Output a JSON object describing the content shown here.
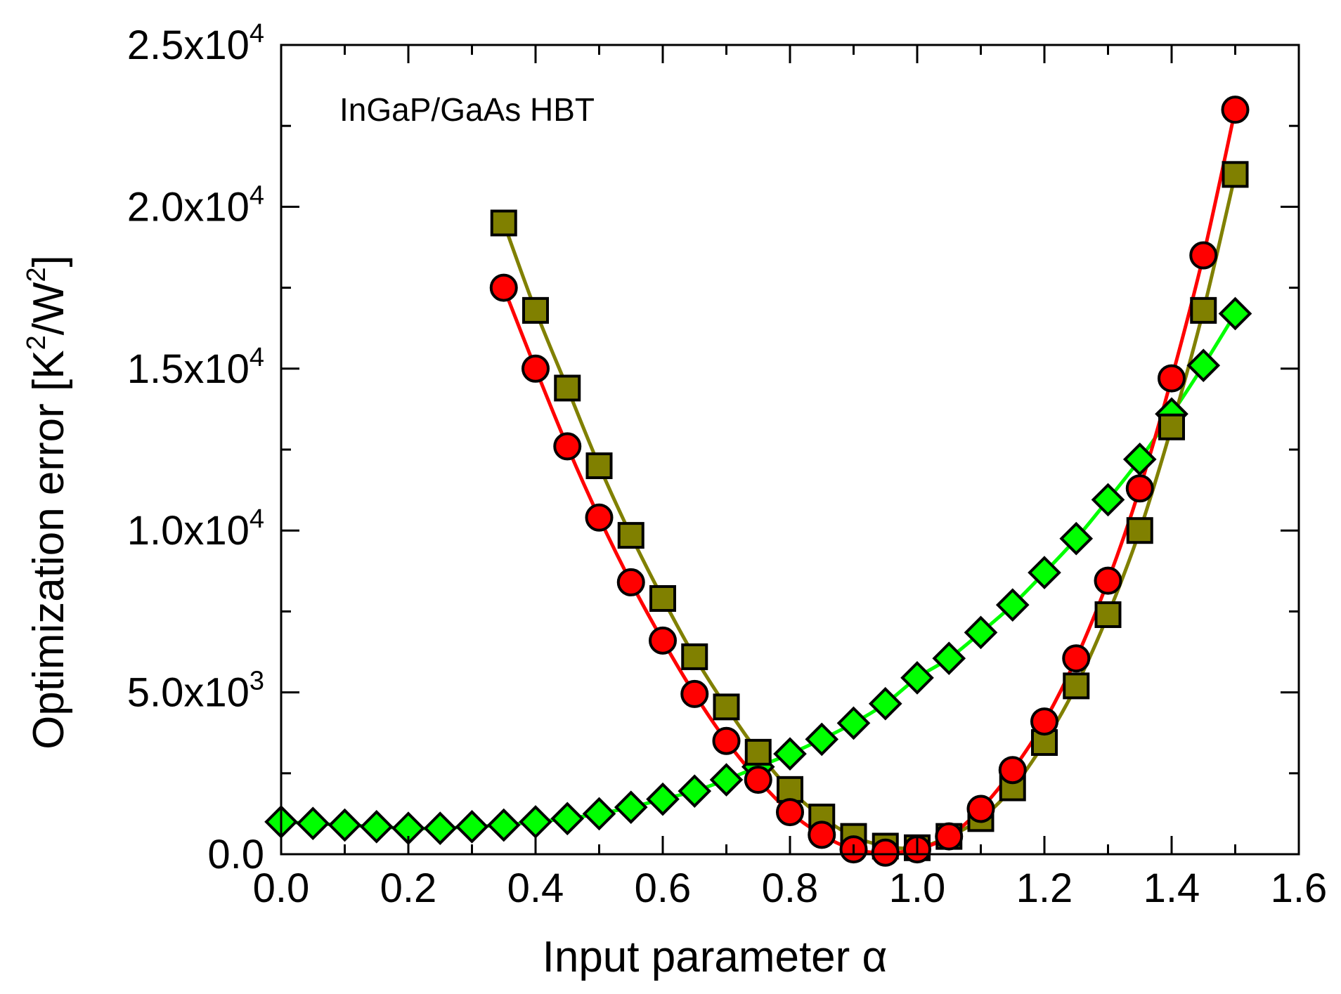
{
  "chart_data": {
    "type": "line",
    "title": "",
    "annotation": "InGaP/GaAs HBT",
    "xlabel": "Input parameter α",
    "ylabel": "Optimization error [K²/W²]",
    "ylabel_parts": {
      "prefix": "Optimization error [K",
      "sup1": "2",
      "mid": "/W",
      "sup2": "2",
      "suffix": "]"
    },
    "xlim": [
      0.0,
      1.6
    ],
    "ylim": [
      0,
      25000
    ],
    "x_ticks": [
      {
        "value": 0.0,
        "label": "0.0"
      },
      {
        "value": 0.2,
        "label": "0.2"
      },
      {
        "value": 0.4,
        "label": "0.4"
      },
      {
        "value": 0.6,
        "label": "0.6"
      },
      {
        "value": 0.8,
        "label": "0.8"
      },
      {
        "value": 1.0,
        "label": "1.0"
      },
      {
        "value": 1.2,
        "label": "1.2"
      },
      {
        "value": 1.4,
        "label": "1.4"
      },
      {
        "value": 1.6,
        "label": "1.6"
      }
    ],
    "y_ticks": [
      {
        "value": 0,
        "label": "0.0",
        "mantissa": "0.0",
        "exp": ""
      },
      {
        "value": 5000,
        "label": "5.0x10^3",
        "mantissa": "5.0x10",
        "exp": "3"
      },
      {
        "value": 10000,
        "label": "1.0x10^4",
        "mantissa": "1.0x10",
        "exp": "4"
      },
      {
        "value": 15000,
        "label": "1.5x10^4",
        "mantissa": "1.5x10",
        "exp": "4"
      },
      {
        "value": 20000,
        "label": "2.0x10^4",
        "mantissa": "2.0x10",
        "exp": "4"
      },
      {
        "value": 25000,
        "label": "2.5x10^4",
        "mantissa": "2.5x10",
        "exp": "4"
      }
    ],
    "grid": false,
    "legend": "none",
    "series": [
      {
        "name": "olive squares",
        "marker": "square",
        "color": "#808000",
        "line_color": "#808000",
        "x": [
          0.35,
          0.4,
          0.45,
          0.5,
          0.55,
          0.6,
          0.65,
          0.7,
          0.75,
          0.8,
          0.85,
          0.9,
          0.95,
          1.0,
          1.05,
          1.1,
          1.15,
          1.2,
          1.25,
          1.3,
          1.35,
          1.4,
          1.45,
          1.5
        ],
        "y": [
          19500,
          16800,
          14400,
          12000,
          9850,
          7900,
          6100,
          4550,
          3150,
          2000,
          1150,
          550,
          250,
          200,
          550,
          1100,
          2050,
          3450,
          5200,
          7400,
          10000,
          13200,
          16800,
          21000
        ]
      },
      {
        "name": "red circles",
        "marker": "circle",
        "color": "#ff0000",
        "line_color": "#ff0000",
        "x": [
          0.35,
          0.4,
          0.45,
          0.5,
          0.55,
          0.6,
          0.65,
          0.7,
          0.75,
          0.8,
          0.85,
          0.9,
          0.95,
          1.0,
          1.05,
          1.1,
          1.15,
          1.2,
          1.25,
          1.3,
          1.35,
          1.4,
          1.45,
          1.5
        ],
        "y": [
          17500,
          15000,
          12600,
          10400,
          8400,
          6600,
          4950,
          3500,
          2300,
          1300,
          600,
          150,
          50,
          150,
          550,
          1400,
          2600,
          4100,
          6050,
          8450,
          11300,
          14700,
          18500,
          23000
        ]
      },
      {
        "name": "green diamonds",
        "marker": "diamond",
        "color": "#00ff00",
        "line_color": "#00ff00",
        "x": [
          0.0,
          0.05,
          0.1,
          0.15,
          0.2,
          0.25,
          0.3,
          0.35,
          0.4,
          0.45,
          0.5,
          0.55,
          0.6,
          0.65,
          0.7,
          0.75,
          0.8,
          0.85,
          0.9,
          0.95,
          1.0,
          1.05,
          1.1,
          1.15,
          1.2,
          1.25,
          1.3,
          1.35,
          1.4,
          1.45,
          1.5
        ],
        "y": [
          1000,
          950,
          900,
          850,
          800,
          800,
          850,
          900,
          1000,
          1100,
          1250,
          1450,
          1700,
          1950,
          2300,
          2700,
          3100,
          3550,
          4050,
          4650,
          5450,
          6050,
          6850,
          7700,
          8700,
          9750,
          10950,
          12200,
          13600,
          15100,
          16700
        ]
      }
    ]
  }
}
